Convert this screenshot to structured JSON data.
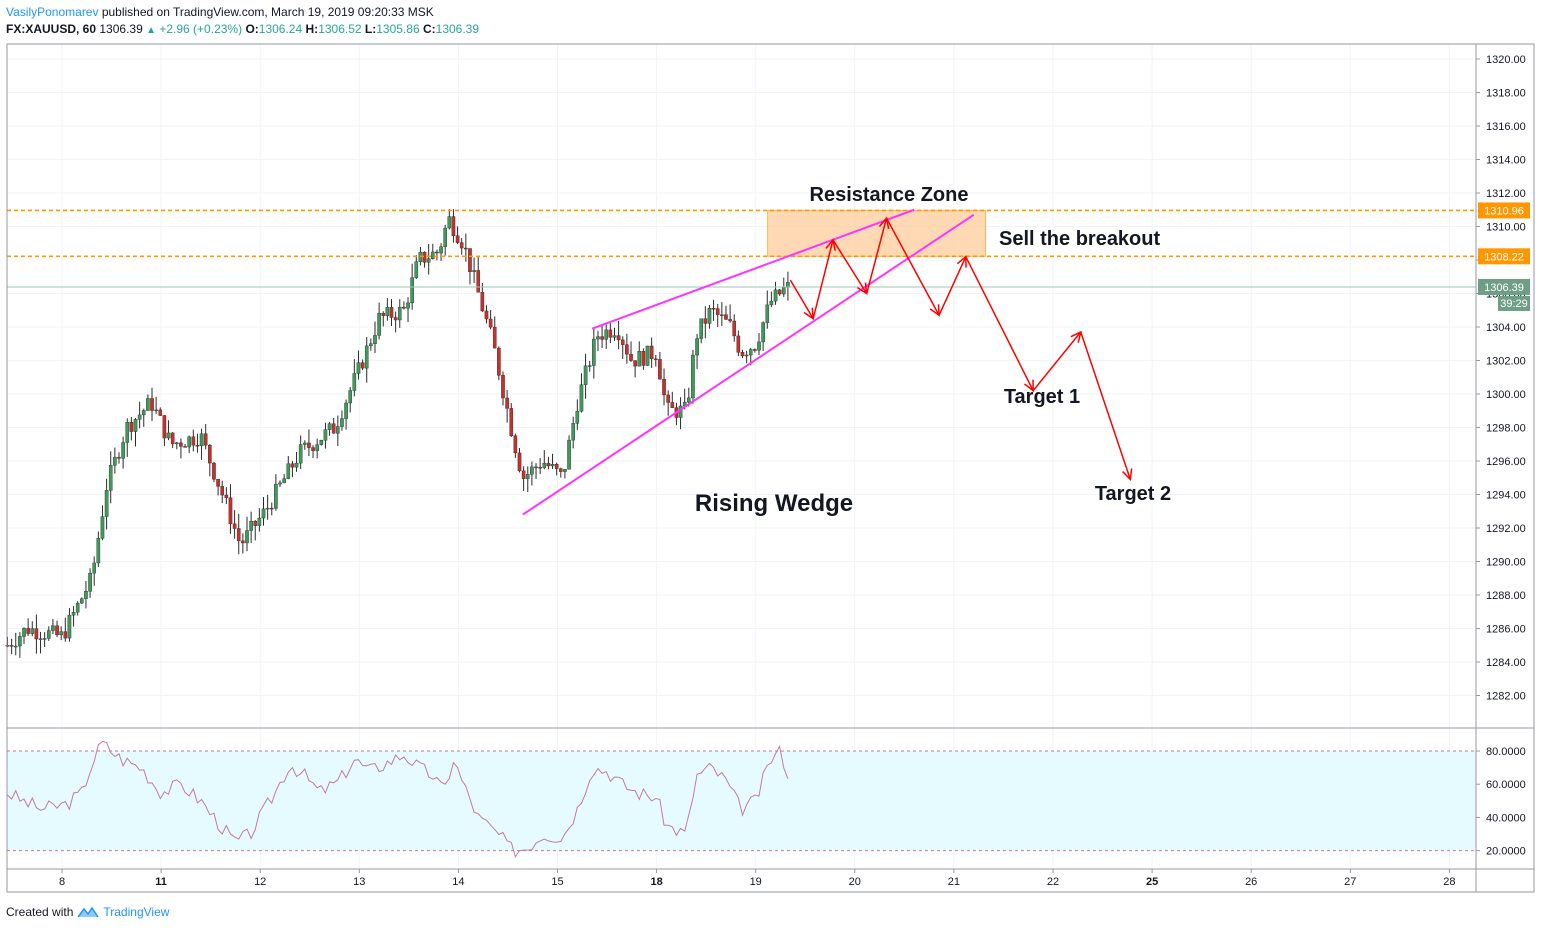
{
  "header": {
    "author": "VasilyPonomarev",
    "published_text": "published on TradingView.com, March 19, 2019 09:20:33 MSK",
    "symbol": "FX:XAUUSD, 60",
    "last": "1306.39",
    "change": "+2.96 (+0.23%)",
    "open_label": "O:",
    "open": "1306.24",
    "high_label": "H:",
    "high": "1306.52",
    "low_label": "L:",
    "low": "1305.86",
    "close_label": "C:",
    "close": "1306.39"
  },
  "footer": {
    "created_with": "Created with",
    "brand": "TradingView"
  },
  "colors": {
    "up": "#26a69a",
    "down": "#ef5350",
    "candle_up": "#3e9c5a",
    "candle_down": "#c9302c",
    "wedge": "#ff33ff",
    "arrows": "#ff0000",
    "resistance": "#ff9800",
    "zone_fill": "#ffcc99",
    "rsi_line": "#c27ba0",
    "rsi_band": "#e6fbff",
    "price_tag": "#6f9e86"
  },
  "chart_data": [
    {
      "type": "candlestick",
      "instrument": "FX:XAUUSD",
      "interval": "60",
      "ylim": [
        1280,
        1321
      ],
      "y_ticks": [
        "1282.00",
        "1284.00",
        "1286.00",
        "1288.00",
        "1290.00",
        "1292.00",
        "1294.00",
        "1296.00",
        "1298.00",
        "1300.00",
        "1302.00",
        "1304.00",
        "1306.00",
        "1308.00",
        "1310.00",
        "1312.00",
        "1314.00",
        "1316.00",
        "1318.00",
        "1320.00"
      ],
      "x_ticks": [
        {
          "label": "8",
          "pos": 0,
          "bold": false
        },
        {
          "label": "11",
          "pos": 1,
          "bold": true
        },
        {
          "label": "12",
          "pos": 2,
          "bold": false
        },
        {
          "label": "13",
          "pos": 3,
          "bold": false
        },
        {
          "label": "14",
          "pos": 4,
          "bold": false
        },
        {
          "label": "15",
          "pos": 5,
          "bold": false
        },
        {
          "label": "18",
          "pos": 6,
          "bold": true
        },
        {
          "label": "19",
          "pos": 7,
          "bold": false
        },
        {
          "label": "20",
          "pos": 8,
          "bold": false
        },
        {
          "label": "21",
          "pos": 9,
          "bold": false
        },
        {
          "label": "22",
          "pos": 10,
          "bold": false
        },
        {
          "label": "25",
          "pos": 11,
          "bold": true
        },
        {
          "label": "26",
          "pos": 12,
          "bold": false
        },
        {
          "label": "27",
          "pos": 13,
          "bold": false
        },
        {
          "label": "28",
          "pos": 14,
          "bold": false
        }
      ],
      "key_points": [
        {
          "t": -0.55,
          "p": 1285.0
        },
        {
          "t": -0.35,
          "p": 1286.0
        },
        {
          "t": 0.0,
          "p": 1285.5
        },
        {
          "t": 0.3,
          "p": 1289.0
        },
        {
          "t": 0.45,
          "p": 1294.5
        },
        {
          "t": 0.65,
          "p": 1298.0
        },
        {
          "t": 0.9,
          "p": 1299.5
        },
        {
          "t": 1.1,
          "p": 1297.0
        },
        {
          "t": 1.4,
          "p": 1297.5
        },
        {
          "t": 1.65,
          "p": 1293.5
        },
        {
          "t": 1.8,
          "p": 1291.0
        },
        {
          "t": 2.05,
          "p": 1293.0
        },
        {
          "t": 2.4,
          "p": 1296.5
        },
        {
          "t": 2.75,
          "p": 1298.0
        },
        {
          "t": 3.0,
          "p": 1301.5
        },
        {
          "t": 3.2,
          "p": 1304.5
        },
        {
          "t": 3.45,
          "p": 1305.0
        },
        {
          "t": 3.6,
          "p": 1308.0
        },
        {
          "t": 3.8,
          "p": 1308.5
        },
        {
          "t": 3.9,
          "p": 1310.5
        },
        {
          "t": 4.05,
          "p": 1309.0
        },
        {
          "t": 4.15,
          "p": 1307.0
        },
        {
          "t": 4.35,
          "p": 1303.0
        },
        {
          "t": 4.55,
          "p": 1297.5
        },
        {
          "t": 4.65,
          "p": 1295.0
        },
        {
          "t": 4.85,
          "p": 1296.0
        },
        {
          "t": 5.05,
          "p": 1295.0
        },
        {
          "t": 5.2,
          "p": 1299.5
        },
        {
          "t": 5.4,
          "p": 1303.5
        },
        {
          "t": 5.6,
          "p": 1304.0
        },
        {
          "t": 5.75,
          "p": 1302.0
        },
        {
          "t": 6.0,
          "p": 1302.5
        },
        {
          "t": 6.1,
          "p": 1299.0
        },
        {
          "t": 6.3,
          "p": 1299.0
        },
        {
          "t": 6.4,
          "p": 1303.5
        },
        {
          "t": 6.55,
          "p": 1305.0
        },
        {
          "t": 6.75,
          "p": 1304.0
        },
        {
          "t": 6.85,
          "p": 1302.5
        },
        {
          "t": 7.0,
          "p": 1303.0
        },
        {
          "t": 7.15,
          "p": 1305.5
        },
        {
          "t": 7.3,
          "p": 1306.3
        },
        {
          "t": 7.35,
          "p": 1306.39
        }
      ],
      "last_price": "1306.39",
      "countdown": "39:29",
      "resistance_levels": [
        "1310.96",
        "1308.22"
      ],
      "resistance_values": [
        1310.96,
        1308.22
      ],
      "resistance_zone": {
        "t_start": 7.12,
        "t_end": 9.32,
        "top": 1310.96,
        "bottom": 1308.22
      },
      "wedge_lines": [
        {
          "t1": 4.65,
          "p1": 1292.8,
          "t2": 9.2,
          "p2": 1310.7
        },
        {
          "t1": 5.35,
          "p1": 1303.9,
          "t2": 8.6,
          "p2": 1311.0
        }
      ],
      "projection_path": [
        {
          "t": 7.35,
          "p": 1306.8
        },
        {
          "t": 7.58,
          "p": 1304.5
        },
        {
          "t": 7.78,
          "p": 1309.2
        },
        {
          "t": 8.12,
          "p": 1306.0
        },
        {
          "t": 8.32,
          "p": 1310.5
        },
        {
          "t": 8.85,
          "p": 1304.7
        },
        {
          "t": 9.12,
          "p": 1308.2
        },
        {
          "t": 9.8,
          "p": 1300.2
        },
        {
          "t": 10.28,
          "p": 1303.7
        },
        {
          "t": 10.78,
          "p": 1294.9
        }
      ],
      "arrowhead_indices": [
        1,
        2,
        3,
        4,
        5,
        6,
        7,
        8,
        9
      ],
      "annotations": {
        "resistance_zone": "Resistance Zone",
        "sell_breakout": "Sell the breakout",
        "rising_wedge": "Rising Wedge",
        "target_1": "Target 1",
        "target_2": "Target 2"
      }
    },
    {
      "type": "line",
      "indicator": "RSI",
      "ylim": [
        14,
        93
      ],
      "y_ticks": [
        "20.0000",
        "40.0000",
        "60.0000",
        "80.0000"
      ],
      "band": [
        20,
        80
      ],
      "key_points": [
        {
          "t": -0.55,
          "v": 55
        },
        {
          "t": -0.4,
          "v": 50
        },
        {
          "t": -0.2,
          "v": 45
        },
        {
          "t": 0.05,
          "v": 48
        },
        {
          "t": 0.2,
          "v": 55
        },
        {
          "t": 0.3,
          "v": 72
        },
        {
          "t": 0.4,
          "v": 85
        },
        {
          "t": 0.5,
          "v": 80
        },
        {
          "t": 0.6,
          "v": 75
        },
        {
          "t": 0.8,
          "v": 70
        },
        {
          "t": 1.0,
          "v": 55
        },
        {
          "t": 1.2,
          "v": 60
        },
        {
          "t": 1.4,
          "v": 50
        },
        {
          "t": 1.6,
          "v": 35
        },
        {
          "t": 1.75,
          "v": 25
        },
        {
          "t": 1.9,
          "v": 30
        },
        {
          "t": 2.0,
          "v": 40
        },
        {
          "t": 2.15,
          "v": 55
        },
        {
          "t": 2.3,
          "v": 72
        },
        {
          "t": 2.45,
          "v": 65
        },
        {
          "t": 2.6,
          "v": 55
        },
        {
          "t": 2.8,
          "v": 62
        },
        {
          "t": 2.95,
          "v": 75
        },
        {
          "t": 3.1,
          "v": 68
        },
        {
          "t": 3.25,
          "v": 72
        },
        {
          "t": 3.45,
          "v": 78
        },
        {
          "t": 3.6,
          "v": 70
        },
        {
          "t": 3.75,
          "v": 65
        },
        {
          "t": 3.85,
          "v": 55
        },
        {
          "t": 3.95,
          "v": 75
        },
        {
          "t": 4.05,
          "v": 60
        },
        {
          "t": 4.2,
          "v": 40
        },
        {
          "t": 4.4,
          "v": 30
        },
        {
          "t": 4.55,
          "v": 20
        },
        {
          "t": 4.7,
          "v": 22
        },
        {
          "t": 4.85,
          "v": 30
        },
        {
          "t": 5.05,
          "v": 28
        },
        {
          "t": 5.2,
          "v": 45
        },
        {
          "t": 5.35,
          "v": 70
        },
        {
          "t": 5.5,
          "v": 68
        },
        {
          "t": 5.65,
          "v": 60
        },
        {
          "t": 5.8,
          "v": 55
        },
        {
          "t": 6.0,
          "v": 52
        },
        {
          "t": 6.1,
          "v": 35
        },
        {
          "t": 6.3,
          "v": 30
        },
        {
          "t": 6.4,
          "v": 65
        },
        {
          "t": 6.55,
          "v": 70
        },
        {
          "t": 6.7,
          "v": 62
        },
        {
          "t": 6.85,
          "v": 45
        },
        {
          "t": 7.0,
          "v": 50
        },
        {
          "t": 7.15,
          "v": 75
        },
        {
          "t": 7.25,
          "v": 80
        },
        {
          "t": 7.35,
          "v": 62
        }
      ]
    }
  ]
}
